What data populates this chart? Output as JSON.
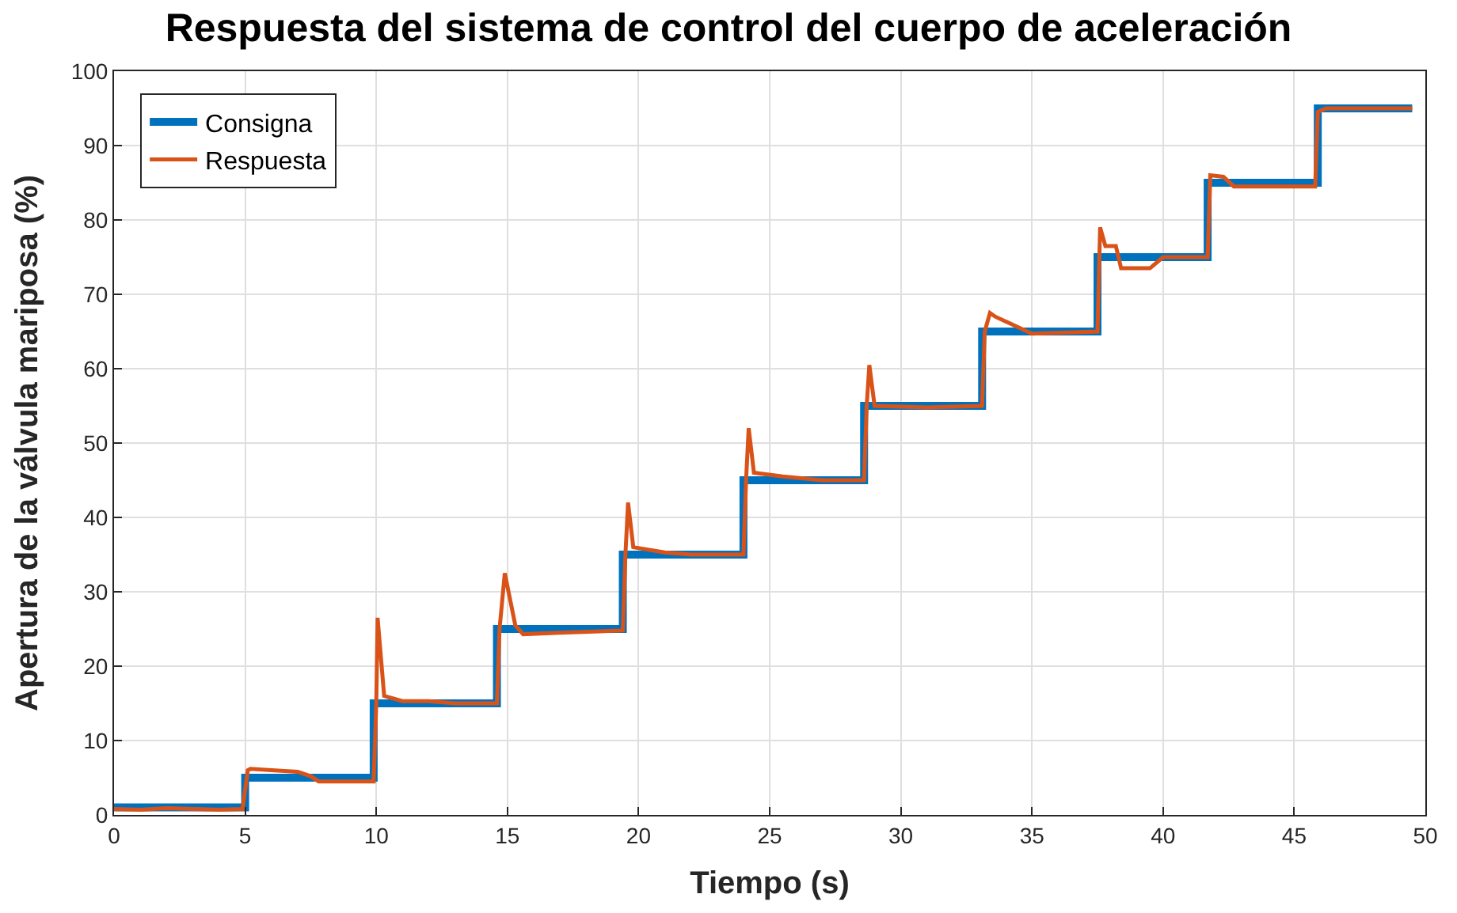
{
  "chart_data": {
    "type": "line",
    "title": "Respuesta del sistema de control del cuerpo de aceleración",
    "xlabel": "Tiempo (s)",
    "ylabel": "Apertura de la válvula mariposa (%)",
    "xlim": [
      0,
      50
    ],
    "ylim": [
      0,
      100
    ],
    "xticks": [
      0,
      5,
      10,
      15,
      20,
      25,
      30,
      35,
      40,
      45,
      50
    ],
    "yticks": [
      0,
      10,
      20,
      30,
      40,
      50,
      60,
      70,
      80,
      90,
      100
    ],
    "grid": true,
    "legend": "top left",
    "series": [
      {
        "name": "Consigna",
        "type": "step",
        "color": "#0072bd",
        "x": [
          0,
          5.0,
          9.9,
          14.6,
          19.4,
          24.0,
          28.6,
          33.1,
          37.5,
          41.7,
          45.9,
          49.5
        ],
        "values": [
          1,
          5,
          15,
          25,
          35,
          45,
          55,
          65,
          75,
          85,
          95,
          95
        ]
      },
      {
        "name": "Respuesta",
        "color": "#d95319",
        "x": [
          0,
          1,
          2,
          3,
          4,
          4.9,
          5.1,
          5.2,
          6,
          7,
          7.5,
          7.8,
          8.5,
          9.9,
          10.0,
          10.05,
          10.3,
          11,
          12,
          13,
          14.6,
          14.7,
          14.9,
          15.1,
          15.3,
          15.6,
          17,
          19.4,
          19.5,
          19.6,
          19.8,
          21,
          22,
          24.0,
          24.1,
          24.2,
          24.4,
          25.5,
          27,
          28.6,
          28.7,
          28.8,
          29,
          31,
          33.1,
          33.2,
          33.4,
          33.6,
          35,
          37.5,
          37.6,
          37.8,
          38.2,
          38.4,
          39.5,
          40,
          41.7,
          41.8,
          42.3,
          42.7,
          44,
          45.8,
          45.9,
          46.2,
          48,
          49.5
        ],
        "values": [
          0.8,
          0.7,
          0.9,
          0.8,
          0.7,
          0.8,
          6,
          6.2,
          6,
          5.8,
          5.2,
          4.5,
          4.5,
          4.5,
          15,
          26.5,
          16,
          15.3,
          15.3,
          15,
          15,
          25,
          32.5,
          29,
          25.5,
          24.3,
          24.5,
          24.8,
          35,
          42,
          36,
          35.3,
          35,
          35,
          45,
          52,
          46,
          45.5,
          45,
          45,
          55,
          60.5,
          55,
          54.8,
          55,
          65,
          67.5,
          67,
          64.7,
          65,
          79,
          76.5,
          76.5,
          73.5,
          73.5,
          75,
          75,
          86,
          85.8,
          84.5,
          84.5,
          84.5,
          94.5,
          95,
          95,
          95
        ]
      }
    ]
  }
}
